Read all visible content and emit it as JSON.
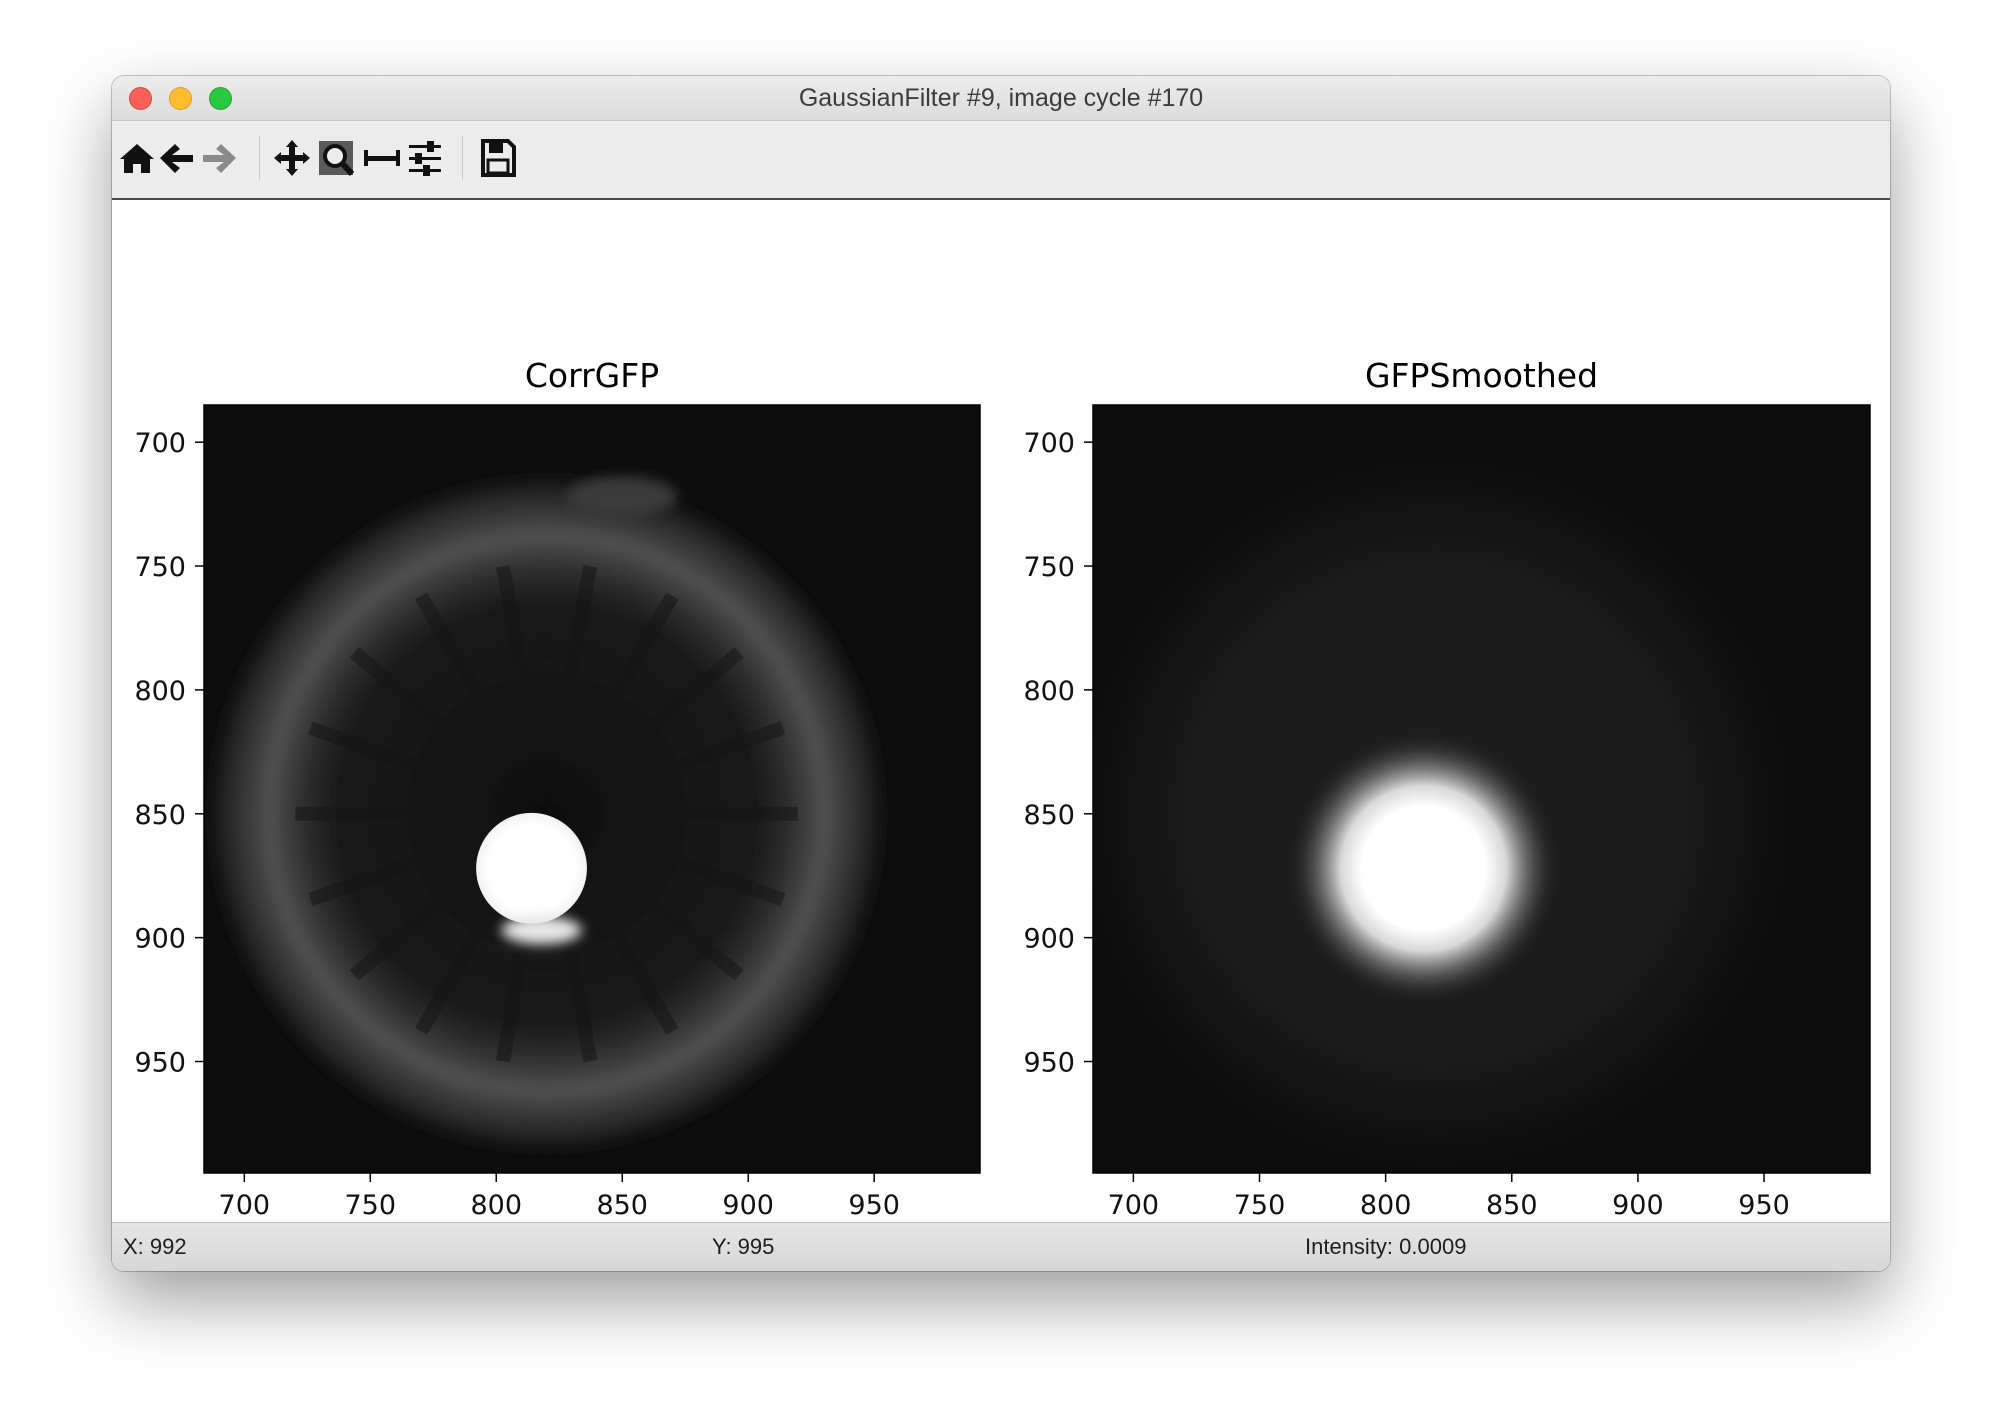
{
  "window": {
    "title": "GaussianFilter #9, image cycle #170"
  },
  "toolbar": {
    "buttons": [
      {
        "name": "home",
        "icon": "home-icon"
      },
      {
        "name": "back",
        "icon": "arrow-left-icon"
      },
      {
        "name": "forward",
        "icon": "arrow-right-icon"
      },
      {
        "name": "pan",
        "icon": "move-icon"
      },
      {
        "name": "zoom",
        "icon": "zoom-rect-icon"
      },
      {
        "name": "subplots",
        "icon": "subplots-icon"
      },
      {
        "name": "customize",
        "icon": "sliders-icon"
      },
      {
        "name": "save",
        "icon": "save-icon"
      }
    ]
  },
  "plots": [
    {
      "title": "CorrGFP"
    },
    {
      "title": "GFPSmoothed"
    }
  ],
  "chart_data": [
    {
      "type": "heatmap",
      "title": "CorrGFP",
      "colormap": "gray",
      "xlim": [
        684,
        992
      ],
      "ylim": [
        995,
        685
      ],
      "xticks": [
        700,
        750,
        800,
        850,
        900,
        950
      ],
      "yticks": [
        700,
        750,
        800,
        850,
        900,
        950
      ],
      "features": {
        "bright_spot_center": [
          814,
          872
        ],
        "bright_spot_radius": 22,
        "ring_center": [
          820,
          850
        ],
        "ring_radius": 95
      }
    },
    {
      "type": "heatmap",
      "title": "GFPSmoothed",
      "colormap": "gray",
      "xlim": [
        684,
        992
      ],
      "ylim": [
        995,
        685
      ],
      "xticks": [
        700,
        750,
        800,
        850,
        900,
        950
      ],
      "yticks": [
        700,
        750,
        800,
        850,
        900,
        950
      ],
      "features": {
        "bright_spot_center": [
          815,
          872
        ],
        "bright_spot_radius": 26,
        "ring_center": [
          820,
          850
        ],
        "ring_radius": 100
      }
    }
  ],
  "status": {
    "x": "X: 992",
    "y": "Y: 995",
    "intensity": "Intensity: 0.0009"
  },
  "colors": {
    "close": "#fe5f57",
    "minimize": "#febc2e",
    "maximize": "#28c840",
    "image_background": "#0d0d0d"
  }
}
